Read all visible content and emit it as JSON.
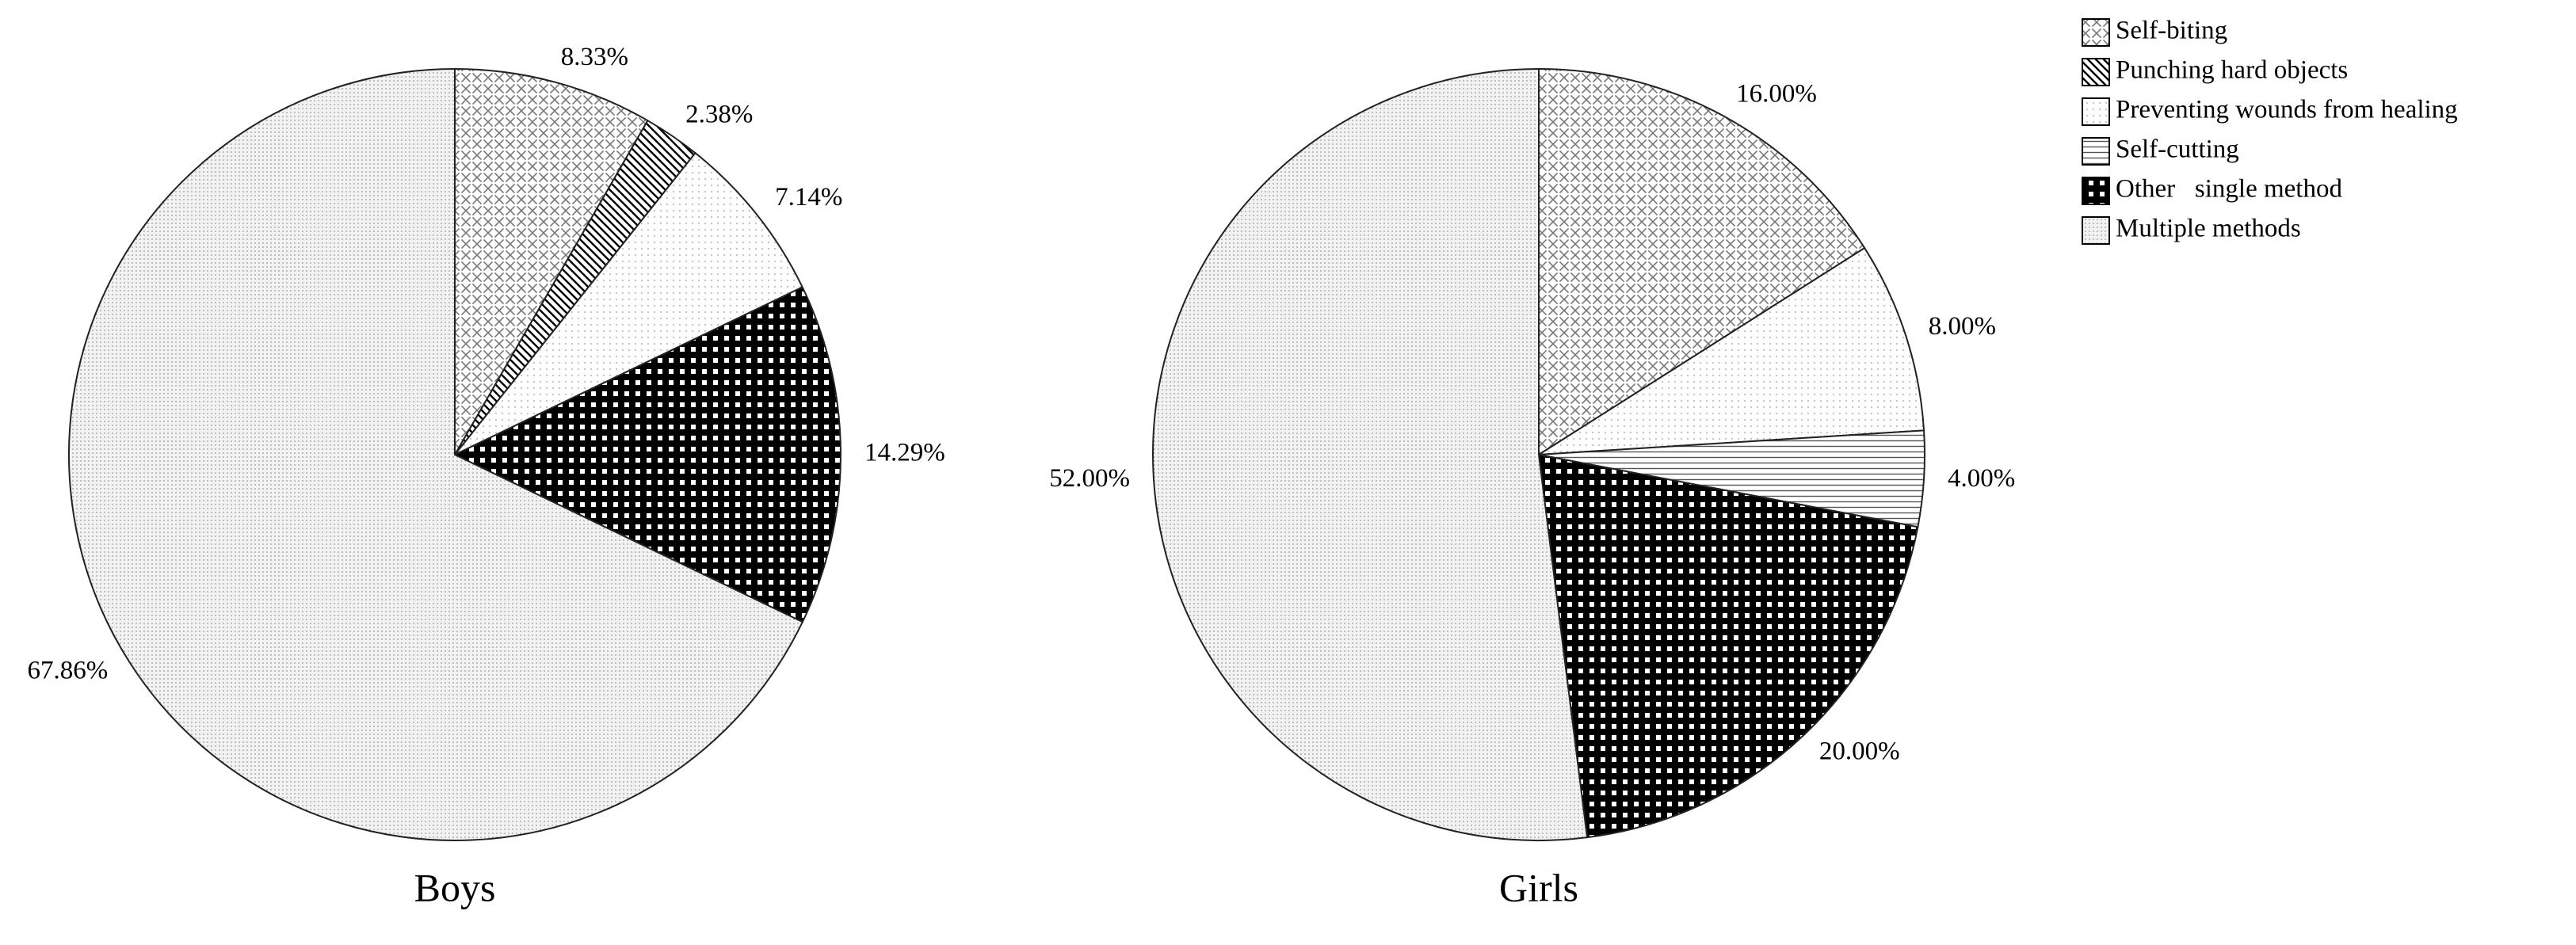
{
  "legend": [
    "Self-biting",
    "Punching hard objects",
    "Preventing wounds from healing",
    "Self-cutting",
    "Other   single method",
    "Multiple methods"
  ],
  "chart_data": [
    {
      "type": "pie",
      "title": "Boys",
      "categories": [
        "Self-biting",
        "Punching hard objects",
        "Preventing wounds from healing",
        "Other   single method",
        "Multiple methods"
      ],
      "values": [
        8.33,
        2.38,
        7.14,
        14.29,
        67.86
      ],
      "value_labels": [
        "8.33%",
        "2.38%",
        "7.14%",
        "14.29%",
        "67.86%"
      ]
    },
    {
      "type": "pie",
      "title": "Girls",
      "categories": [
        "Self-biting",
        "Preventing wounds from healing",
        "Self-cutting",
        "Other   single method",
        "Multiple methods"
      ],
      "values": [
        16,
        8,
        4,
        20,
        52
      ],
      "value_labels": [
        "16.00%",
        "8.00%",
        "4.00%",
        "20.00%",
        "52.00%"
      ]
    }
  ]
}
